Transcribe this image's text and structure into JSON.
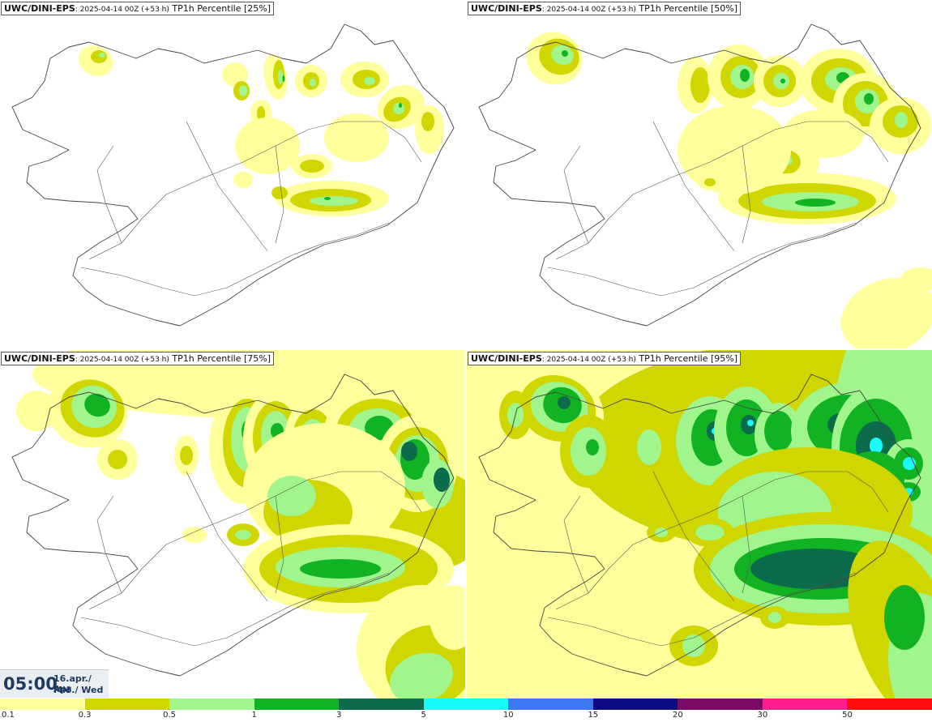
{
  "panels": [
    {
      "model": "UWC/DINI-EPS",
      "run": ": 2025-04-14 00Z (+53 h)",
      "field": " TP1h Percentile [25%]"
    },
    {
      "model": "UWC/DINI-EPS",
      "run": ": 2025-04-14 00Z (+53 h)",
      "field": " TP1h Percentile [50%]"
    },
    {
      "model": "UWC/DINI-EPS",
      "run": ": 2025-04-14 00Z (+53 h)",
      "field": " TP1h Percentile [75%]"
    },
    {
      "model": "UWC/DINI-EPS",
      "run": ": 2025-04-14 00Z (+53 h)",
      "field": " TP1h Percentile [95%]"
    }
  ],
  "valid_time": {
    "time": "05:00",
    "date": "16.apr./ Apr",
    "weekday": "Mið./ Wed"
  },
  "legend": {
    "labels": [
      "0.1",
      "0.3",
      "0.5",
      "1",
      "3",
      "5",
      "10",
      "15",
      "20",
      "30",
      "50"
    ],
    "colors": [
      "#ffff9c",
      "#cfd600",
      "#a0f58c",
      "#12b322",
      "#0c6b4a",
      "#19fafa",
      "#3c78f0",
      "#0c0c82",
      "#7a0a66",
      "#ff1e8c",
      "#ff0d0d"
    ]
  }
}
